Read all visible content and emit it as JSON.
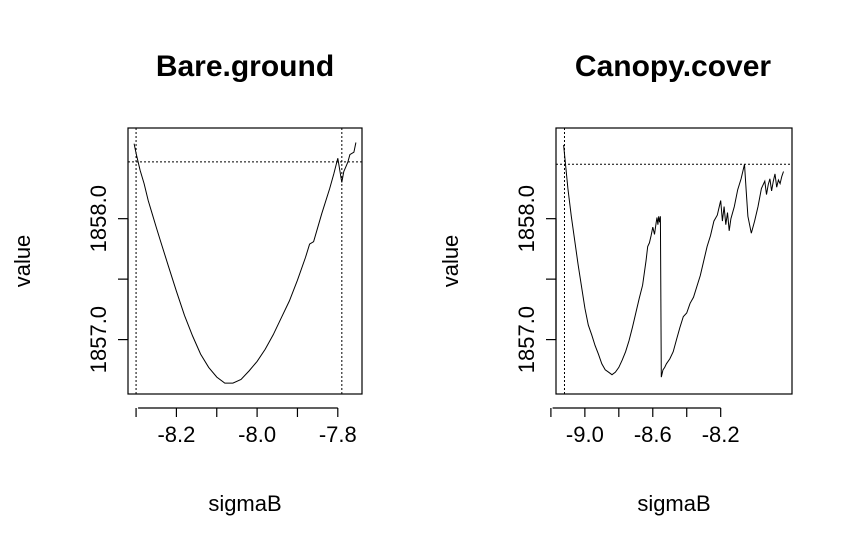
{
  "chart_data": [
    {
      "type": "line",
      "title": "Bare.ground",
      "xlabel": "sigmaB",
      "ylabel": "value",
      "xlim": [
        -8.32,
        -7.74
      ],
      "ylim": [
        1856.55,
        1858.75
      ],
      "xticks": [
        -8.2,
        -8.0,
        -7.8
      ],
      "xtick_labels": [
        "-8.2",
        "-8.0",
        "-7.8"
      ],
      "yticks": [
        1857.0,
        1857.5,
        1858.0
      ],
      "ytick_labels": [
        "1857.0",
        "",
        "1858.0"
      ],
      "hline": 1858.47,
      "vlines": [
        -8.3,
        -7.79
      ],
      "series": [
        {
          "x": [
            -8.305,
            -8.3,
            -8.29,
            -8.28,
            -8.27,
            -8.26,
            -8.25,
            -8.24,
            -8.22,
            -8.2,
            -8.18,
            -8.16,
            -8.14,
            -8.12,
            -8.1,
            -8.08,
            -8.06,
            -8.04,
            -8.02,
            -8.0,
            -7.98,
            -7.96,
            -7.94,
            -7.92,
            -7.9,
            -7.88,
            -7.87,
            -7.86,
            -7.84,
            -7.82,
            -7.81,
            -7.8,
            -7.79,
            -7.785,
            -7.78,
            -7.775,
            -7.77,
            -7.76,
            -7.755
          ],
          "y": [
            1858.62,
            1858.54,
            1858.4,
            1858.29,
            1858.15,
            1858.04,
            1857.93,
            1857.82,
            1857.61,
            1857.4,
            1857.2,
            1857.03,
            1856.88,
            1856.77,
            1856.69,
            1856.64,
            1856.64,
            1856.67,
            1856.74,
            1856.82,
            1856.92,
            1857.04,
            1857.18,
            1857.32,
            1857.49,
            1857.68,
            1857.79,
            1857.81,
            1858.04,
            1858.25,
            1858.37,
            1858.5,
            1858.3,
            1858.39,
            1858.43,
            1858.47,
            1858.53,
            1858.55,
            1858.63
          ]
        }
      ]
    },
    {
      "type": "line",
      "title": "Canopy.cover",
      "xlabel": "sigmaB",
      "ylabel": "value",
      "xlim": [
        -9.17,
        -7.78
      ],
      "ylim": [
        1856.55,
        1858.75
      ],
      "xticks": [
        -9.0,
        -8.6,
        -8.2
      ],
      "xtick_labels": [
        "-9.0",
        "-8.6",
        "-8.2"
      ],
      "yticks": [
        1857.0,
        1857.5,
        1858.0
      ],
      "ytick_labels": [
        "1857.0",
        "",
        "1858.0"
      ],
      "hline": 1858.45,
      "vlines": [
        -9.12
      ],
      "series": [
        {
          "x": [
            -9.125,
            -9.1,
            -9.08,
            -9.06,
            -9.04,
            -9.02,
            -9.0,
            -8.98,
            -8.96,
            -8.94,
            -8.92,
            -8.9,
            -8.88,
            -8.86,
            -8.84,
            -8.82,
            -8.8,
            -8.78,
            -8.76,
            -8.74,
            -8.72,
            -8.7,
            -8.68,
            -8.66,
            -8.65,
            -8.64,
            -8.63,
            -8.62,
            -8.61,
            -8.6,
            -8.59,
            -8.58,
            -8.575,
            -8.57,
            -8.565,
            -8.56,
            -8.555,
            -8.55,
            -8.54,
            -8.53,
            -8.52,
            -8.5,
            -8.48,
            -8.46,
            -8.44,
            -8.42,
            -8.4,
            -8.38,
            -8.36,
            -8.34,
            -8.32,
            -8.3,
            -8.28,
            -8.26,
            -8.24,
            -8.22,
            -8.21,
            -8.2,
            -8.19,
            -8.18,
            -8.17,
            -8.16,
            -8.15,
            -8.14,
            -8.12,
            -8.1,
            -8.08,
            -8.06,
            -8.05,
            -8.04,
            -8.02,
            -8.0,
            -7.98,
            -7.96,
            -7.94,
            -7.93,
            -7.92,
            -7.91,
            -7.9,
            -7.89,
            -7.88,
            -7.87,
            -7.86,
            -7.85,
            -7.84,
            -7.83
          ],
          "y": [
            1858.61,
            1858.25,
            1858.02,
            1857.82,
            1857.62,
            1857.44,
            1857.26,
            1857.12,
            1857.04,
            1856.95,
            1856.88,
            1856.8,
            1856.75,
            1856.73,
            1856.71,
            1856.73,
            1856.77,
            1856.83,
            1856.9,
            1856.99,
            1857.1,
            1857.22,
            1857.34,
            1857.45,
            1857.55,
            1857.65,
            1857.77,
            1857.8,
            1857.86,
            1857.93,
            1857.87,
            1857.97,
            1858.01,
            1857.95,
            1858.02,
            1857.97,
            1858.02,
            1856.69,
            1856.75,
            1856.77,
            1856.8,
            1856.84,
            1856.9,
            1857.0,
            1857.1,
            1857.19,
            1857.22,
            1857.3,
            1857.35,
            1857.44,
            1857.53,
            1857.65,
            1857.77,
            1857.86,
            1857.98,
            1858.03,
            1858.09,
            1858.15,
            1857.98,
            1858.1,
            1857.95,
            1858.05,
            1857.9,
            1858.0,
            1858.1,
            1858.24,
            1858.33,
            1858.45,
            1858.23,
            1858.02,
            1857.88,
            1857.98,
            1858.1,
            1858.25,
            1858.31,
            1858.2,
            1858.28,
            1858.33,
            1858.23,
            1858.31,
            1858.37,
            1858.26,
            1858.32,
            1858.29,
            1858.35,
            1858.39
          ]
        }
      ]
    }
  ]
}
